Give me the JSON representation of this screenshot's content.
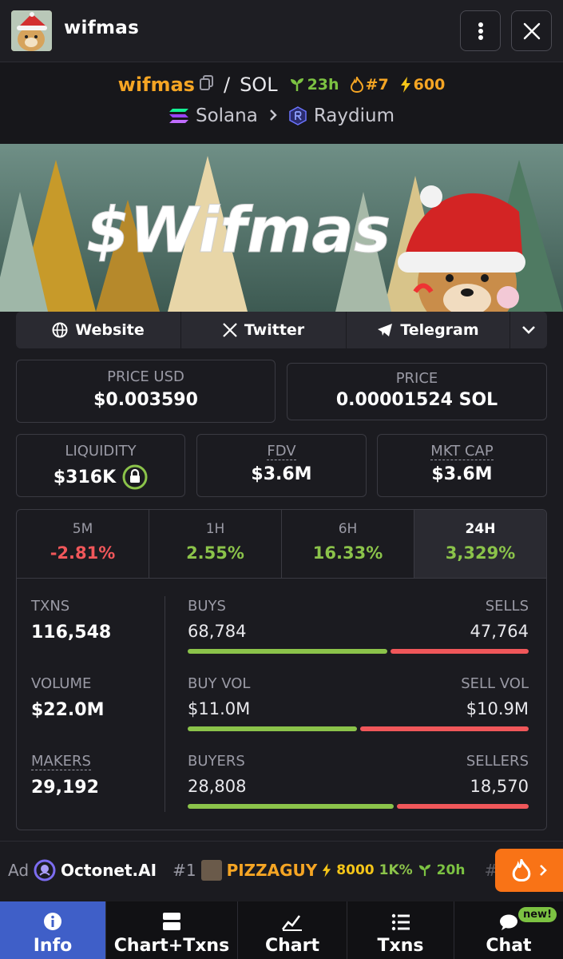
{
  "header": {
    "title": "wifmas"
  },
  "pair": {
    "base": "wifmas",
    "quote": "SOL",
    "age": "23h",
    "rank": "#7",
    "boost": "600",
    "chain": "Solana",
    "dex": "Raydium"
  },
  "banner": {
    "text": "$Wifmas"
  },
  "links": {
    "website": "Website",
    "twitter": "Twitter",
    "telegram": "Telegram"
  },
  "stats": {
    "price_usd_label": "PRICE USD",
    "price_usd": "$0.003590",
    "price_label": "PRICE",
    "price": "0.00001524 SOL",
    "liquidity_label": "LIQUIDITY",
    "liquidity": "$316K",
    "fdv_label": "FDV",
    "fdv": "$3.6M",
    "mktcap_label": "MKT CAP",
    "mktcap": "$3.6M"
  },
  "timeframes": [
    {
      "label": "5M",
      "value": "-2.81%"
    },
    {
      "label": "1H",
      "value": "2.55%"
    },
    {
      "label": "6H",
      "value": "16.33%"
    },
    {
      "label": "24H",
      "value": "3,329%"
    }
  ],
  "metrics": {
    "txns_label": "TXNS",
    "txns": "116,548",
    "volume_label": "VOLUME",
    "volume": "$22.0M",
    "makers_label": "MAKERS",
    "makers": "29,192",
    "buys_label": "BUYS",
    "buys": "68,784",
    "sells_label": "SELLS",
    "sells": "47,764",
    "buyvol_label": "BUY VOL",
    "buyvol": "$11.0M",
    "sellvol_label": "SELL VOL",
    "sellvol": "$10.9M",
    "buyers_label": "BUYERS",
    "buyers": "28,808",
    "sellers_label": "SELLERS",
    "sellers": "18,570",
    "buys_ratio": 0.59,
    "buyvol_ratio": 0.5,
    "buyers_ratio": 0.61
  },
  "ticker": {
    "ad_label": "Ad",
    "ad_name": "Octonet.AI",
    "rank": "#1",
    "token": "PIZZAGUY",
    "boost": "8000",
    "change": "1K%",
    "age": "20h",
    "next_rank": "#"
  },
  "nav": [
    {
      "label": "Info"
    },
    {
      "label": "Chart+Txns"
    },
    {
      "label": "Chart"
    },
    {
      "label": "Txns"
    },
    {
      "label": "Chat"
    }
  ],
  "chat_badge": "new!",
  "colors": {
    "positive": "#8bc34a",
    "negative": "#f0575a",
    "accent": "#f5a524",
    "active_nav": "#3f5fc8",
    "fire": "#f97316"
  }
}
